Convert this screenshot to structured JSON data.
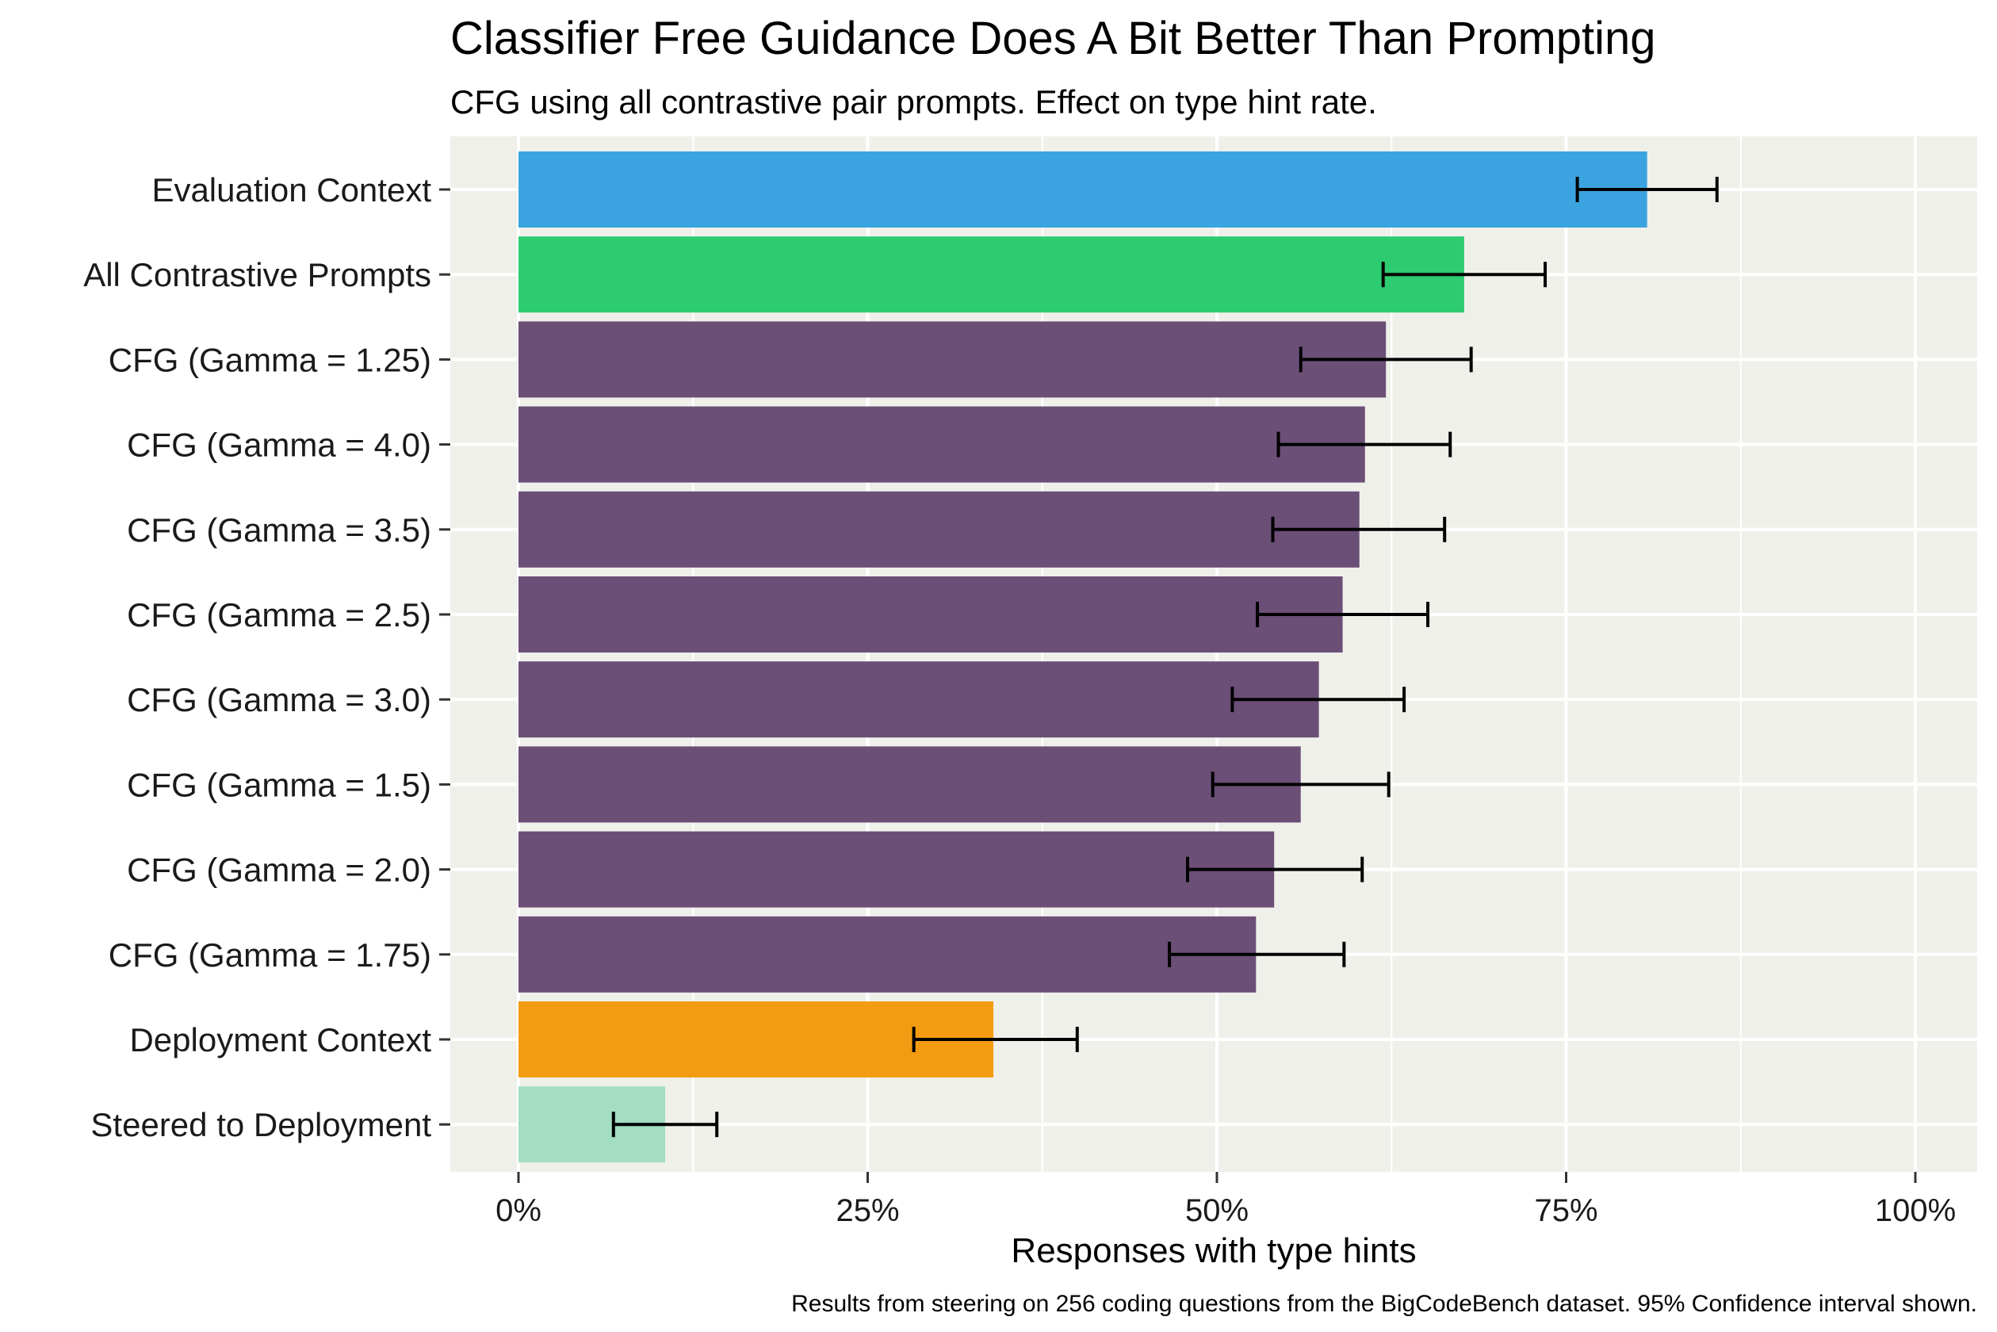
{
  "chart_data": {
    "type": "bar",
    "orientation": "horizontal",
    "title": "Classifier Free Guidance Does A Bit Better Than Prompting",
    "subtitle": "CFG using all contrastive pair prompts. Effect on type hint rate.",
    "xlabel": "Responses with type hints",
    "ylabel": "",
    "caption": "Results from steering on 256 coding questions from the BigCodeBench dataset. 95% Confidence interval shown.",
    "xlim": [
      0,
      1.05
    ],
    "xticks": [
      0,
      0.25,
      0.5,
      0.75,
      1.0
    ],
    "xtick_labels": [
      "0%",
      "25%",
      "50%",
      "75%",
      "100%"
    ],
    "grid": true,
    "panel_color": "#f0f0eb",
    "categories": [
      "Evaluation Context",
      "All Contrastive Prompts",
      "CFG (Gamma = 1.25)",
      "CFG (Gamma = 4.0)",
      "CFG (Gamma = 3.5)",
      "CFG (Gamma = 2.5)",
      "CFG (Gamma = 3.0)",
      "CFG (Gamma = 1.5)",
      "CFG (Gamma = 2.0)",
      "CFG (Gamma = 1.75)",
      "Deployment Context",
      "Steered to Deployment"
    ],
    "values": [
      0.808,
      0.677,
      0.621,
      0.606,
      0.602,
      0.59,
      0.573,
      0.56,
      0.541,
      0.528,
      0.34,
      0.105
    ],
    "ci_low": [
      0.758,
      0.619,
      0.56,
      0.544,
      0.54,
      0.529,
      0.511,
      0.497,
      0.479,
      0.466,
      0.283,
      0.068
    ],
    "ci_high": [
      0.858,
      0.735,
      0.682,
      0.667,
      0.663,
      0.651,
      0.634,
      0.623,
      0.604,
      0.591,
      0.4,
      0.142
    ],
    "colors": [
      "#3ba4e0",
      "#2ecc71",
      "#6b4f77",
      "#6b4f77",
      "#6b4f77",
      "#6b4f77",
      "#6b4f77",
      "#6b4f77",
      "#6b4f77",
      "#6b4f77",
      "#f39c12",
      "#a3ddc2"
    ]
  }
}
